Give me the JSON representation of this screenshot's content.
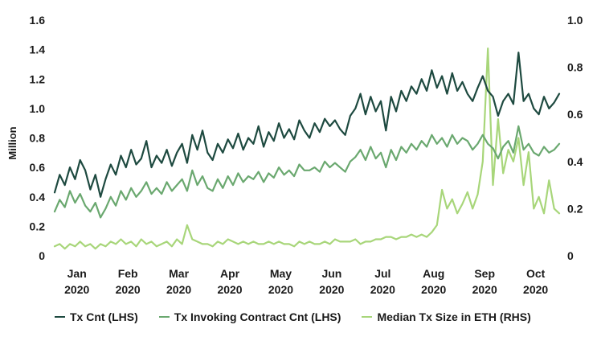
{
  "chart_data": {
    "type": "line",
    "title": "",
    "ylabel": "Million",
    "y2label": "",
    "ylim": [
      0,
      1.6
    ],
    "y2lim": [
      0,
      1.0
    ],
    "yticks": [
      "0",
      "0.2",
      "0.4",
      "0.6",
      "0.8",
      "1.0",
      "1.2",
      "1.4",
      "1.6"
    ],
    "y2ticks": [
      "0",
      "0.2",
      "0.4",
      "0.6",
      "0.8",
      "1.0"
    ],
    "x_tick_labels": [
      {
        "m": "Jan",
        "y": "2020",
        "x": 0.5
      },
      {
        "m": "Feb",
        "y": "2020",
        "x": 1.5
      },
      {
        "m": "Mar",
        "y": "2020",
        "x": 2.5
      },
      {
        "m": "Apr",
        "y": "2020",
        "x": 3.5
      },
      {
        "m": "May",
        "y": "2020",
        "x": 4.5
      },
      {
        "m": "Jun",
        "y": "2020",
        "x": 5.5
      },
      {
        "m": "Jul",
        "y": "2020",
        "x": 6.5
      },
      {
        "m": "Aug",
        "y": "2020",
        "x": 7.5
      },
      {
        "m": "Sep",
        "y": "2020",
        "x": 8.5
      },
      {
        "m": "Oct",
        "y": "2020",
        "x": 9.5
      }
    ],
    "x_unit": "months since 2020-01-01",
    "series": [
      {
        "name": "Tx Cnt (LHS)",
        "axis": "left",
        "color": "#1e4a40",
        "x": [
          0,
          0.1,
          0.2,
          0.3,
          0.4,
          0.5,
          0.6,
          0.7,
          0.8,
          0.9,
          1.0,
          1.1,
          1.2,
          1.3,
          1.4,
          1.5,
          1.6,
          1.7,
          1.8,
          1.9,
          2.0,
          2.1,
          2.2,
          2.3,
          2.4,
          2.5,
          2.6,
          2.7,
          2.8,
          2.9,
          3.0,
          3.1,
          3.2,
          3.3,
          3.4,
          3.5,
          3.6,
          3.7,
          3.8,
          3.9,
          4.0,
          4.1,
          4.2,
          4.3,
          4.4,
          4.5,
          4.6,
          4.7,
          4.8,
          4.9,
          5.0,
          5.1,
          5.2,
          5.3,
          5.4,
          5.5,
          5.6,
          5.7,
          5.8,
          5.9,
          6.0,
          6.1,
          6.2,
          6.3,
          6.4,
          6.5,
          6.6,
          6.7,
          6.8,
          6.9,
          7.0,
          7.1,
          7.2,
          7.3,
          7.4,
          7.5,
          7.6,
          7.7,
          7.8,
          7.9,
          8.0,
          8.1,
          8.2,
          8.3,
          8.4,
          8.5,
          8.6,
          8.7,
          8.8,
          8.9,
          9.0,
          9.1,
          9.2,
          9.3,
          9.4,
          9.5,
          9.6,
          9.7,
          9.8,
          9.9
        ],
        "values": [
          0.43,
          0.55,
          0.48,
          0.6,
          0.52,
          0.65,
          0.58,
          0.45,
          0.55,
          0.4,
          0.52,
          0.62,
          0.55,
          0.68,
          0.6,
          0.72,
          0.62,
          0.66,
          0.78,
          0.6,
          0.68,
          0.63,
          0.72,
          0.61,
          0.7,
          0.76,
          0.63,
          0.82,
          0.72,
          0.85,
          0.7,
          0.65,
          0.76,
          0.7,
          0.79,
          0.73,
          0.83,
          0.72,
          0.8,
          0.76,
          0.88,
          0.74,
          0.84,
          0.78,
          0.9,
          0.8,
          0.86,
          0.79,
          0.92,
          0.85,
          0.8,
          0.9,
          0.84,
          0.93,
          0.88,
          0.92,
          0.86,
          0.82,
          0.95,
          1.0,
          1.1,
          0.96,
          1.08,
          0.98,
          1.05,
          0.85,
          1.08,
          0.98,
          1.12,
          1.05,
          1.15,
          1.1,
          1.2,
          1.12,
          1.26,
          1.14,
          1.22,
          1.1,
          1.24,
          1.12,
          1.18,
          1.1,
          1.05,
          1.14,
          1.22,
          1.12,
          1.08,
          0.95,
          1.05,
          1.1,
          1.03,
          1.38,
          1.05,
          1.1,
          1.0,
          0.96,
          1.08,
          1.0,
          1.04,
          1.1
        ]
      },
      {
        "name": "Tx Invoking Contract Cnt (LHS)",
        "axis": "left",
        "color": "#6aa86f",
        "x": [
          0,
          0.1,
          0.2,
          0.3,
          0.4,
          0.5,
          0.6,
          0.7,
          0.8,
          0.9,
          1.0,
          1.1,
          1.2,
          1.3,
          1.4,
          1.5,
          1.6,
          1.7,
          1.8,
          1.9,
          2.0,
          2.1,
          2.2,
          2.3,
          2.4,
          2.5,
          2.6,
          2.7,
          2.8,
          2.9,
          3.0,
          3.1,
          3.2,
          3.3,
          3.4,
          3.5,
          3.6,
          3.7,
          3.8,
          3.9,
          4.0,
          4.1,
          4.2,
          4.3,
          4.4,
          4.5,
          4.6,
          4.7,
          4.8,
          4.9,
          5.0,
          5.1,
          5.2,
          5.3,
          5.4,
          5.5,
          5.6,
          5.7,
          5.8,
          5.9,
          6.0,
          6.1,
          6.2,
          6.3,
          6.4,
          6.5,
          6.6,
          6.7,
          6.8,
          6.9,
          7.0,
          7.1,
          7.2,
          7.3,
          7.4,
          7.5,
          7.6,
          7.7,
          7.8,
          7.9,
          8.0,
          8.1,
          8.2,
          8.3,
          8.4,
          8.5,
          8.6,
          8.7,
          8.8,
          8.9,
          9.0,
          9.1,
          9.2,
          9.3,
          9.4,
          9.5,
          9.6,
          9.7,
          9.8,
          9.9
        ],
        "values": [
          0.3,
          0.38,
          0.33,
          0.44,
          0.36,
          0.42,
          0.34,
          0.3,
          0.36,
          0.26,
          0.32,
          0.4,
          0.34,
          0.44,
          0.38,
          0.46,
          0.4,
          0.44,
          0.5,
          0.42,
          0.46,
          0.42,
          0.5,
          0.44,
          0.48,
          0.52,
          0.44,
          0.58,
          0.48,
          0.54,
          0.46,
          0.44,
          0.52,
          0.46,
          0.54,
          0.48,
          0.56,
          0.5,
          0.54,
          0.52,
          0.57,
          0.5,
          0.56,
          0.53,
          0.6,
          0.55,
          0.58,
          0.54,
          0.62,
          0.58,
          0.58,
          0.6,
          0.57,
          0.64,
          0.6,
          0.63,
          0.6,
          0.57,
          0.64,
          0.67,
          0.72,
          0.65,
          0.74,
          0.66,
          0.7,
          0.6,
          0.72,
          0.65,
          0.74,
          0.7,
          0.76,
          0.72,
          0.78,
          0.74,
          0.82,
          0.76,
          0.8,
          0.74,
          0.82,
          0.76,
          0.8,
          0.78,
          0.72,
          0.76,
          0.82,
          0.76,
          0.73,
          0.66,
          0.74,
          0.78,
          0.7,
          0.88,
          0.72,
          0.76,
          0.7,
          0.68,
          0.74,
          0.7,
          0.72,
          0.76
        ]
      },
      {
        "name": "Median Tx Size in ETH (RHS)",
        "axis": "right",
        "color": "#a8d67a",
        "x": [
          0,
          0.1,
          0.2,
          0.3,
          0.4,
          0.5,
          0.6,
          0.7,
          0.8,
          0.9,
          1.0,
          1.1,
          1.2,
          1.3,
          1.4,
          1.5,
          1.6,
          1.7,
          1.8,
          1.9,
          2.0,
          2.1,
          2.2,
          2.3,
          2.4,
          2.5,
          2.6,
          2.7,
          2.8,
          2.9,
          3.0,
          3.1,
          3.2,
          3.3,
          3.4,
          3.5,
          3.6,
          3.7,
          3.8,
          3.9,
          4.0,
          4.1,
          4.2,
          4.3,
          4.4,
          4.5,
          4.6,
          4.7,
          4.8,
          4.9,
          5.0,
          5.1,
          5.2,
          5.3,
          5.4,
          5.5,
          5.6,
          5.7,
          5.8,
          5.9,
          6.0,
          6.1,
          6.2,
          6.3,
          6.4,
          6.5,
          6.6,
          6.7,
          6.8,
          6.9,
          7.0,
          7.1,
          7.2,
          7.3,
          7.4,
          7.5,
          7.6,
          7.7,
          7.8,
          7.9,
          8.0,
          8.1,
          8.2,
          8.3,
          8.4,
          8.5,
          8.6,
          8.7,
          8.8,
          8.9,
          9.0,
          9.1,
          9.2,
          9.3,
          9.4,
          9.5,
          9.6,
          9.7,
          9.8,
          9.9
        ],
        "values": [
          0.04,
          0.05,
          0.03,
          0.05,
          0.04,
          0.06,
          0.04,
          0.05,
          0.03,
          0.05,
          0.04,
          0.06,
          0.05,
          0.07,
          0.05,
          0.06,
          0.04,
          0.07,
          0.05,
          0.06,
          0.04,
          0.05,
          0.06,
          0.04,
          0.07,
          0.05,
          0.13,
          0.07,
          0.06,
          0.05,
          0.05,
          0.04,
          0.06,
          0.05,
          0.07,
          0.06,
          0.05,
          0.06,
          0.05,
          0.06,
          0.05,
          0.05,
          0.06,
          0.05,
          0.06,
          0.05,
          0.05,
          0.04,
          0.06,
          0.05,
          0.06,
          0.05,
          0.05,
          0.06,
          0.05,
          0.07,
          0.06,
          0.06,
          0.06,
          0.07,
          0.05,
          0.06,
          0.06,
          0.07,
          0.07,
          0.08,
          0.08,
          0.07,
          0.08,
          0.08,
          0.09,
          0.08,
          0.09,
          0.08,
          0.1,
          0.13,
          0.28,
          0.2,
          0.24,
          0.18,
          0.22,
          0.27,
          0.2,
          0.26,
          0.4,
          0.88,
          0.3,
          0.58,
          0.35,
          0.45,
          0.4,
          0.5,
          0.3,
          0.44,
          0.2,
          0.25,
          0.18,
          0.32,
          0.2,
          0.18
        ]
      }
    ],
    "legend": [
      "Tx Cnt (LHS)",
      "Tx Invoking Contract Cnt (LHS)",
      "Median Tx Size in ETH (RHS)"
    ],
    "legend_position": "bottom",
    "grid": false
  }
}
